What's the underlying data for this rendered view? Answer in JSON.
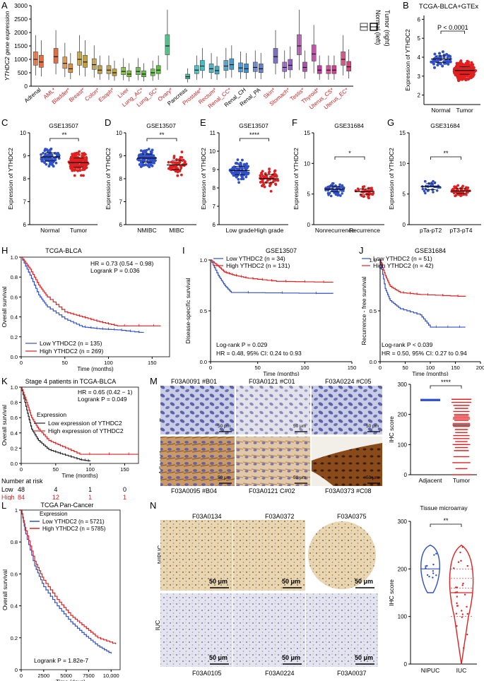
{
  "labels": {
    "A": "A",
    "B": "B",
    "C": "C",
    "D": "D",
    "E": "E",
    "F": "F",
    "G": "G",
    "H": "H",
    "I": "I",
    "J": "J",
    "K": "K",
    "L": "L",
    "M": "M",
    "N": "N"
  },
  "panelA": {
    "ylabel": "YTHDC2 gene expression",
    "yticks": [
      "0",
      "500",
      "1000",
      "1500",
      "2000",
      "2500",
      "3000"
    ],
    "legend_normal": "Normal (left)",
    "legend_tumor": "Tumor (right)",
    "tissues": [
      "Adrenal",
      "AML*",
      "Bladder*",
      "Breast*",
      "Colon*",
      "Esoph*",
      "Liver",
      "Lung_AC*",
      "Lung_SC*",
      "Ovary*",
      "Pancreas",
      "Prostate*",
      "Rectum*",
      "Renal_CC*",
      "Renal_CH",
      "Renal_PA",
      "Skin*",
      "Stomach*",
      "Testis*",
      "Thyroid*",
      "Uterus_CS*",
      "Uterus_EC*"
    ],
    "significant": [
      false,
      true,
      true,
      true,
      true,
      true,
      true,
      true,
      true,
      true,
      false,
      true,
      true,
      true,
      false,
      false,
      true,
      true,
      true,
      true,
      true,
      true
    ],
    "normal_medians": [
      1000,
      null,
      850,
      1000,
      800,
      600,
      550,
      550,
      500,
      1500,
      null,
      600,
      650,
      750,
      680,
      700,
      null,
      700,
      1500,
      1200,
      600,
      1000
    ],
    "tumor_medians": [
      900,
      1100,
      650,
      900,
      600,
      500,
      450,
      450,
      600,
      null,
      350,
      750,
      580,
      800,
      650,
      650,
      1100,
      780,
      700,
      600,
      600,
      720
    ]
  },
  "panelB": {
    "title": "TCGA-BLCA+GTEx",
    "ylabel": "Expression of YTHDC2",
    "yticks": [
      "2",
      "3",
      "4",
      "5",
      "6"
    ],
    "pvalue": "P < 0.0001",
    "categories": [
      "Normal",
      "Tumor"
    ]
  },
  "panelC": {
    "title": "GSE13507",
    "ylabel": "Expression of YTHDC2",
    "yticks": [
      "6",
      "7",
      "8",
      "9",
      "10"
    ],
    "sig": "**",
    "categories": [
      "Normal",
      "Tumor"
    ]
  },
  "panelD": {
    "title": "GSE13507",
    "ylabel": "Expression of YTHDC2",
    "yticks": [
      "6",
      "7",
      "8",
      "9",
      "10"
    ],
    "sig": "**",
    "categories": [
      "NMIBC",
      "MIBC"
    ]
  },
  "panelE": {
    "title": "GSE13507",
    "ylabel": "Expression of YTHDC2",
    "yticks": [
      "6",
      "7",
      "8",
      "9",
      "10",
      "11"
    ],
    "sig": "****",
    "categories": [
      "Low grade",
      "High grade"
    ]
  },
  "panelF": {
    "title": "GSE31684",
    "ylabel": "Expression of YTHDC2",
    "yticks": [
      "0",
      "5",
      "10",
      "15"
    ],
    "sig": "*",
    "categories": [
      "Nonrecurrence",
      "Recurrence"
    ]
  },
  "panelG": {
    "title": "GSE31684",
    "ylabel": "Expression of YTHDC2",
    "yticks": [
      "0",
      "5",
      "10",
      "15"
    ],
    "sig": "**",
    "categories": [
      "pTa-pT2",
      "pT3-pT4"
    ]
  },
  "panelH": {
    "title": "TCGA-BLCA",
    "ylabel": "Overall survival",
    "xlabel": "Time (months)",
    "yticks": [
      "0.0",
      "0.2",
      "0.4",
      "0.6",
      "0.8",
      "1.0"
    ],
    "xticks": [
      "0",
      "50",
      "100",
      "150"
    ],
    "hr": "HR = 0.73 (0.54 − 0.98)",
    "logrank": "Logrank P = 0.036",
    "low": "Low YTHDC2 (n = 135)",
    "high": "High YTHDC2 (n = 269)"
  },
  "panelI": {
    "title": "GSE13507",
    "ylabel": "Disease-specific survival",
    "xlabel": "Time (months)",
    "yticks": [
      "0.0",
      "0.5",
      "1.0"
    ],
    "xticks": [
      "0",
      "50",
      "100",
      "150"
    ],
    "low": "Low YTHDC2 (n = 34)",
    "high": "High YTHDC2 (n = 131)",
    "logrank": "Log-rank P = 0.029",
    "hr": "HR = 0.48, 95% CI: 0.24 to 0.93"
  },
  "panelJ": {
    "title": "GSE31684",
    "ylabel": "Recurrence - free survival",
    "xlabel": "Time (months)",
    "yticks": [
      "0.0",
      "0.5",
      "1.0"
    ],
    "xticks": [
      "0",
      "50",
      "100",
      "150",
      "200"
    ],
    "low": "Low YTHDC2 (n = 51)",
    "high": "High YTHDC2 (n = 42)",
    "logrank": "Log-rank P < 0.039",
    "hr": "HR = 0.50, 95% CI: 0.27 to 0.94"
  },
  "panelK": {
    "title": "Stage 4 patients in TCGA-BLCA",
    "ylabel": "Overall survival",
    "xlabel": "Time (months)",
    "yticks": [
      "0.0",
      "0.2",
      "0.4",
      "0.6",
      "0.8",
      "1.0"
    ],
    "xticks": [
      "0",
      "50",
      "100",
      "150"
    ],
    "hr": "HR = 0.65 (0.42 − 1)",
    "logrank": "Logrank P = 0.049",
    "legend_title": "Expression",
    "low": "Low expression of YTHDC2",
    "high": "High expression of YTHDC2",
    "risk_title": "Number at risk",
    "risk_low_label": "Low",
    "risk_high_label": "High",
    "risk_low": [
      "48",
      "4",
      "1",
      "0"
    ],
    "risk_high": [
      "84",
      "12",
      "1",
      "1"
    ]
  },
  "panelL": {
    "title": "TCGA Pan-Cancer",
    "ylabel": "Overall survival",
    "xlabel": "Time (days)",
    "yticks": [
      "0",
      "0.2",
      "0.4",
      "0.6",
      "0.8",
      "1"
    ],
    "xticks": [
      "0",
      "2500",
      "5000",
      "7500",
      "10,000"
    ],
    "legend_title": "Expression",
    "low": "Low YTHDC2 (n = 5721)",
    "high": "High YTHDC2 (n = 5785)",
    "logrank": "Logrank P = 1.82e-7"
  },
  "panelM": {
    "top_ids": [
      "F03A0091 #B01",
      "F03A0121 #C01",
      "F03A0224 #C05"
    ],
    "bottom_ids": [
      "F03A0095 #B04",
      "F03A0121 C#02",
      "F03A0373 #C08"
    ],
    "row_top": "Tumor",
    "row_bottom": "Adjacent",
    "scale": "50 μm",
    "ylabel": "IHC score",
    "yticks": [
      "0",
      "100",
      "200",
      "300"
    ],
    "sig": "****",
    "categories": [
      "Adjacent",
      "Tumor"
    ]
  },
  "panelN": {
    "top_ids": [
      "F03A0134",
      "F03A0372",
      "F03A0375"
    ],
    "bottom_ids": [
      "F03A0105",
      "F03A0224",
      "F03A0037"
    ],
    "row_top": "NIPUC",
    "row_bottom": "IUC",
    "scale": "50 μm",
    "title": "Tissue microarray",
    "ylabel": "IHC score",
    "yticks": [
      "0",
      "100",
      "200",
      "300"
    ],
    "sig": "**",
    "categories": [
      "NIPUC",
      "IUC"
    ]
  },
  "colors": {
    "blue": "#3050c8",
    "red": "#e02020",
    "label_red": "#d02020",
    "green": "#40c080"
  }
}
